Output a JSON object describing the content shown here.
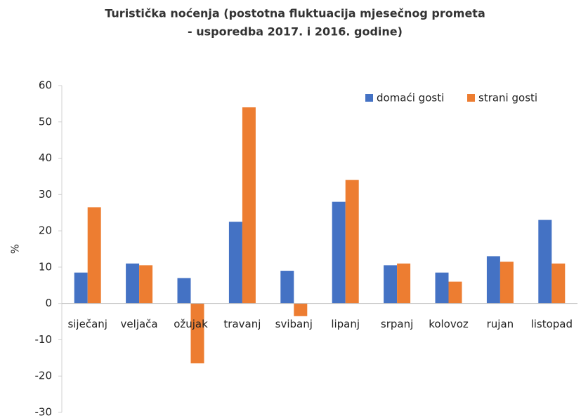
{
  "chart_data": {
    "type": "bar",
    "title": [
      "Turistička noćenja (postotna fluktuacija  mjesečnog prometa",
      "- usporedba 2017. i 2016. godine)"
    ],
    "y_label": "%",
    "categories": [
      "siječanj",
      "veljača",
      "ožujak",
      "travanj",
      "svibanj",
      "lipanj",
      "srpanj",
      "kolovoz",
      "rujan",
      "listopad"
    ],
    "series": [
      {
        "name": "domaći gosti",
        "color": "#4472c4",
        "values": [
          8.5,
          11,
          7,
          22.5,
          9,
          28,
          10.5,
          8.5,
          13,
          23
        ]
      },
      {
        "name": "strani gosti",
        "color": "#ed7d31",
        "values": [
          26.5,
          10.5,
          -16.5,
          54,
          -3.5,
          34,
          11,
          6,
          11.5,
          11
        ]
      }
    ],
    "ylim": [
      -30,
      60
    ],
    "yticks": [
      -30,
      -20,
      -10,
      0,
      10,
      20,
      30,
      40,
      50,
      60
    ],
    "grid": false,
    "legend": "top-right"
  }
}
